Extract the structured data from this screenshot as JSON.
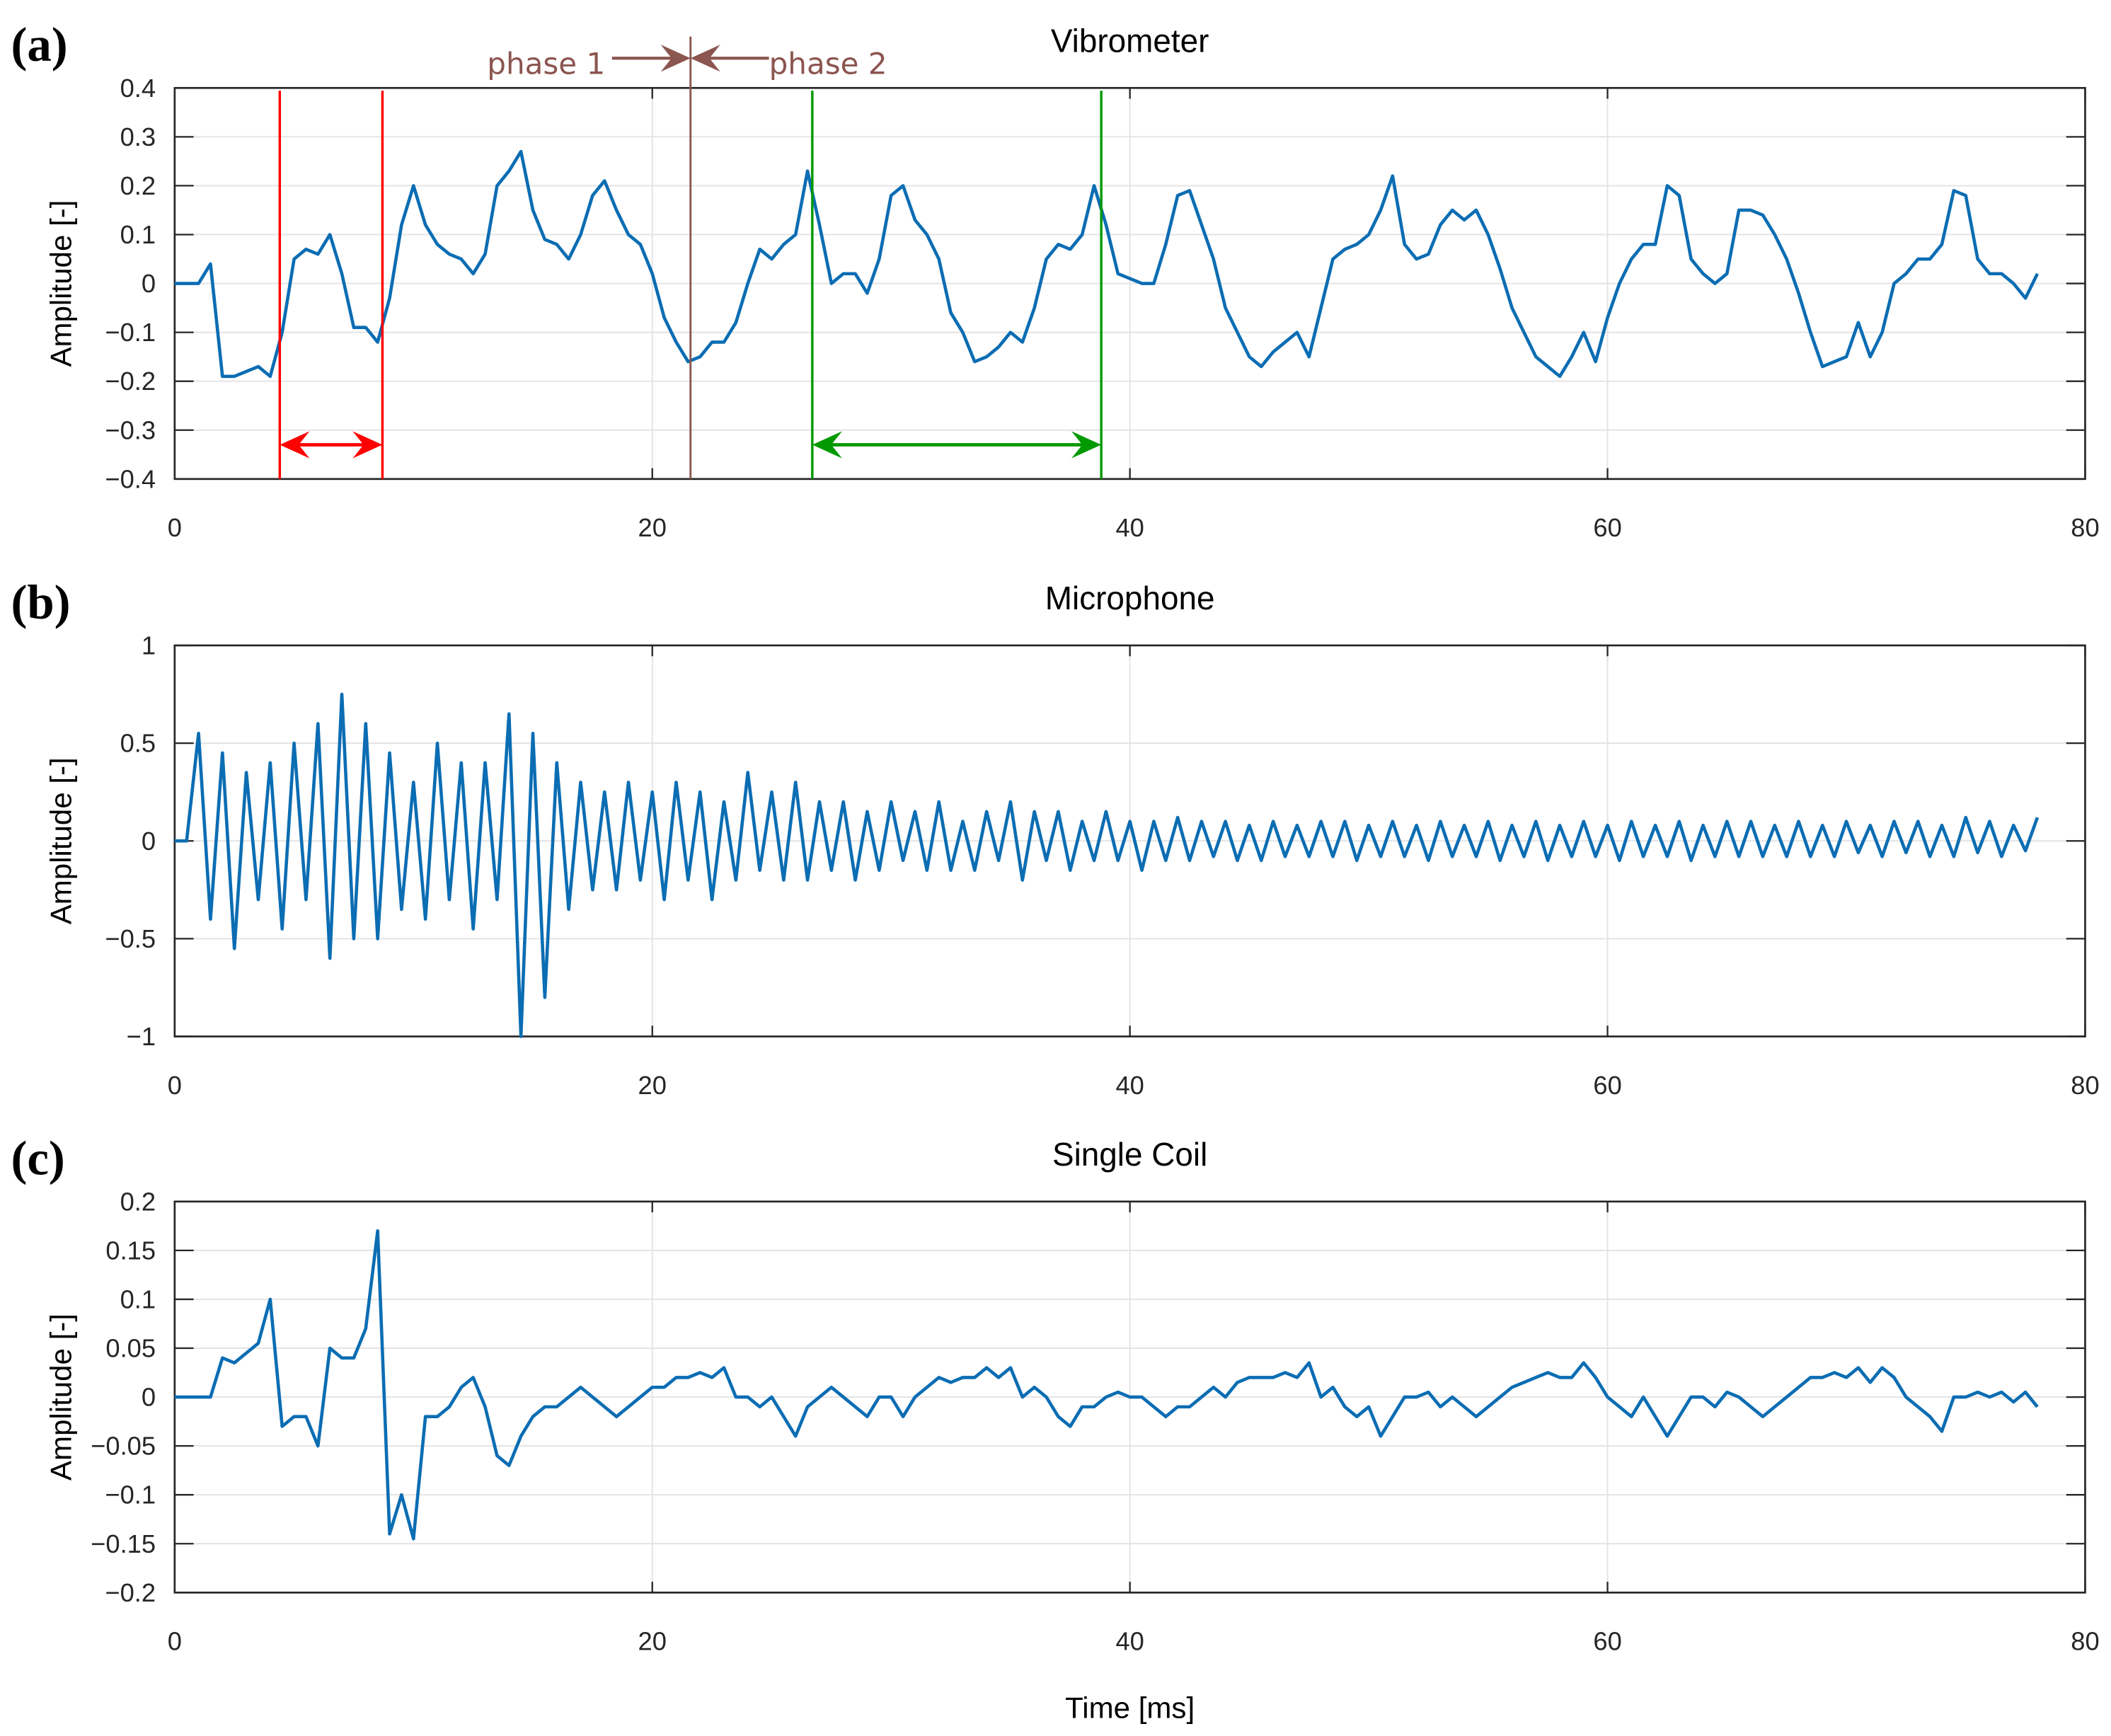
{
  "chart_data": [
    {
      "type": "line",
      "panel_label": "(a)",
      "title": "Vibrometer",
      "y_label": "Amplitude [-]",
      "color": "#0b6db3",
      "grid": true,
      "xlim": [
        0,
        80
      ],
      "xticks": [
        0,
        20,
        40,
        60,
        80
      ],
      "ylim": [
        -0.4,
        0.4
      ],
      "yticks": [
        {
          "value": -0.4,
          "label": "−0.4"
        },
        {
          "value": -0.3,
          "label": "−0.3"
        },
        {
          "value": -0.2,
          "label": "−0.2"
        },
        {
          "value": -0.1,
          "label": "−0.1"
        },
        0,
        0.1,
        0.2,
        0.3,
        0.4
      ],
      "x": [
        0,
        0.5,
        1,
        1.5,
        2,
        2.5,
        3,
        3.5,
        4,
        4.5,
        5,
        5.5,
        6,
        6.5,
        7,
        7.5,
        8,
        8.5,
        9,
        9.5,
        10,
        10.5,
        11,
        11.5,
        12,
        12.5,
        13,
        13.5,
        14,
        14.5,
        15,
        15.5,
        16,
        16.5,
        17,
        17.5,
        18,
        18.5,
        19,
        19.5,
        20,
        20.5,
        21,
        21.5,
        22,
        22.5,
        23,
        23.5,
        24,
        24.5,
        25,
        25.5,
        26,
        26.5,
        27,
        27.5,
        28,
        28.5,
        29,
        29.5,
        30,
        30.5,
        31,
        31.5,
        32,
        32.5,
        33,
        33.5,
        34,
        34.5,
        35,
        35.5,
        36,
        36.5,
        37,
        37.5,
        38,
        38.5,
        39,
        39.5,
        40,
        40.5,
        41,
        41.5,
        42,
        42.5,
        43,
        43.5,
        44,
        44.5,
        45,
        45.5,
        46,
        46.5,
        47,
        47.5,
        48,
        48.5,
        49,
        49.5,
        50,
        50.5,
        51,
        51.5,
        52,
        52.5,
        53,
        53.5,
        54,
        54.5,
        55,
        55.5,
        56,
        56.5,
        57,
        57.5,
        58,
        58.5,
        59,
        59.5,
        60,
        60.5,
        61,
        61.5,
        62,
        62.5,
        63,
        63.5,
        64,
        64.5,
        65,
        65.5,
        66,
        66.5,
        67,
        67.5,
        68,
        68.5,
        69,
        69.5,
        70,
        70.5,
        71,
        71.5,
        72,
        72.5,
        73,
        73.5,
        74,
        74.5,
        75,
        75.5,
        76,
        76.5,
        77,
        77.5,
        78
      ],
      "values": [
        0,
        0,
        0,
        0.04,
        -0.19,
        -0.19,
        -0.18,
        -0.17,
        -0.19,
        -0.1,
        0.05,
        0.07,
        0.06,
        0.1,
        0.02,
        -0.09,
        -0.09,
        -0.12,
        -0.03,
        0.12,
        0.2,
        0.12,
        0.08,
        0.06,
        0.05,
        0.02,
        0.06,
        0.2,
        0.23,
        0.27,
        0.15,
        0.09,
        0.08,
        0.05,
        0.1,
        0.18,
        0.21,
        0.15,
        0.1,
        0.08,
        0.02,
        -0.07,
        -0.12,
        -0.16,
        -0.15,
        -0.12,
        -0.12,
        -0.08,
        0,
        0.07,
        0.05,
        0.08,
        0.1,
        0.23,
        0.12,
        0,
        0.02,
        0.02,
        -0.02,
        0.05,
        0.18,
        0.2,
        0.13,
        0.1,
        0.05,
        -0.06,
        -0.1,
        -0.16,
        -0.15,
        -0.13,
        -0.1,
        -0.12,
        -0.05,
        0.05,
        0.08,
        0.07,
        0.1,
        0.2,
        0.12,
        0.02,
        0.01,
        0,
        0,
        0.08,
        0.18,
        0.19,
        0.12,
        0.05,
        -0.05,
        -0.1,
        -0.15,
        -0.17,
        -0.14,
        -0.12,
        -0.1,
        -0.15,
        -0.05,
        0.05,
        0.07,
        0.08,
        0.1,
        0.15,
        0.22,
        0.08,
        0.05,
        0.06,
        0.12,
        0.15,
        0.13,
        0.15,
        0.1,
        0.03,
        -0.05,
        -0.1,
        -0.15,
        -0.17,
        -0.19,
        -0.15,
        -0.1,
        -0.16,
        -0.07,
        0,
        0.05,
        0.08,
        0.08,
        0.2,
        0.18,
        0.05,
        0.02,
        0,
        0.02,
        0.15,
        0.15,
        0.14,
        0.1,
        0.05,
        -0.02,
        -0.1,
        -0.17,
        -0.16,
        -0.15,
        -0.08,
        -0.15,
        -0.1,
        0,
        0.02,
        0.05,
        0.05,
        0.08,
        0.19,
        0.18,
        0.05,
        0.02,
        0.02,
        0,
        -0.03,
        0.02
      ],
      "vlines": [
        {
          "x": 4.4,
          "color": "#ff0000"
        },
        {
          "x": 8.7,
          "color": "#ff0000"
        },
        {
          "x": 26.7,
          "color": "#009900"
        },
        {
          "x": 38.8,
          "color": "#009900"
        }
      ],
      "spans": [
        {
          "x": [
            4.4,
            8.7
          ],
          "y": -0.33,
          "color": "#ff0000"
        },
        {
          "x": [
            26.7,
            38.8
          ],
          "y": -0.33,
          "color": "#009900"
        }
      ],
      "phase_line": {
        "x": 21.6,
        "color": "#8b5550"
      },
      "phase_labels": [
        "phase 1",
        "phase 2"
      ]
    },
    {
      "type": "line",
      "panel_label": "(b)",
      "title": "Microphone",
      "y_label": "Amplitude [-]",
      "color": "#0b6db3",
      "grid": true,
      "xlim": [
        0,
        80
      ],
      "xticks": [
        0,
        20,
        40,
        60,
        80
      ],
      "ylim": [
        -1,
        1
      ],
      "yticks": [
        {
          "value": -1,
          "label": "−1"
        },
        {
          "value": -0.5,
          "label": "−0.5"
        },
        0,
        0.5,
        1
      ],
      "x": [
        0,
        0.5,
        1,
        1.5,
        2,
        2.5,
        3,
        3.5,
        4,
        4.5,
        5,
        5.5,
        6,
        6.5,
        7,
        7.5,
        8,
        8.5,
        9,
        9.5,
        10,
        10.5,
        11,
        11.5,
        12,
        12.5,
        13,
        13.5,
        14,
        14.5,
        15,
        15.5,
        16,
        16.5,
        17,
        17.5,
        18,
        18.5,
        19,
        19.5,
        20,
        20.5,
        21,
        21.5,
        22,
        22.5,
        23,
        23.5,
        24,
        24.5,
        25,
        25.5,
        26,
        26.5,
        27,
        27.5,
        28,
        28.5,
        29,
        29.5,
        30,
        30.5,
        31,
        31.5,
        32,
        32.5,
        33,
        33.5,
        34,
        34.5,
        35,
        35.5,
        36,
        36.5,
        37,
        37.5,
        38,
        38.5,
        39,
        39.5,
        40,
        40.5,
        41,
        41.5,
        42,
        42.5,
        43,
        43.5,
        44,
        44.5,
        45,
        45.5,
        46,
        46.5,
        47,
        47.5,
        48,
        48.5,
        49,
        49.5,
        50,
        50.5,
        51,
        51.5,
        52,
        52.5,
        53,
        53.5,
        54,
        54.5,
        55,
        55.5,
        56,
        56.5,
        57,
        57.5,
        58,
        58.5,
        59,
        59.5,
        60,
        60.5,
        61,
        61.5,
        62,
        62.5,
        63,
        63.5,
        64,
        64.5,
        65,
        65.5,
        66,
        66.5,
        67,
        67.5,
        68,
        68.5,
        69,
        69.5,
        70,
        70.5,
        71,
        71.5,
        72,
        72.5,
        73,
        73.5,
        74,
        74.5,
        75,
        75.5,
        76,
        76.5,
        77,
        77.5,
        78
      ],
      "values": [
        0,
        0,
        0.55,
        -0.4,
        0.45,
        -0.55,
        0.35,
        -0.3,
        0.4,
        -0.45,
        0.5,
        -0.3,
        0.6,
        -0.6,
        0.75,
        -0.5,
        0.6,
        -0.5,
        0.45,
        -0.35,
        0.3,
        -0.4,
        0.5,
        -0.3,
        0.4,
        -0.45,
        0.4,
        -0.3,
        0.65,
        -1.0,
        0.55,
        -0.8,
        0.4,
        -0.35,
        0.3,
        -0.25,
        0.25,
        -0.25,
        0.3,
        -0.2,
        0.25,
        -0.3,
        0.3,
        -0.2,
        0.25,
        -0.3,
        0.2,
        -0.2,
        0.35,
        -0.15,
        0.25,
        -0.2,
        0.3,
        -0.2,
        0.2,
        -0.15,
        0.2,
        -0.2,
        0.15,
        -0.15,
        0.2,
        -0.1,
        0.15,
        -0.15,
        0.2,
        -0.15,
        0.1,
        -0.15,
        0.15,
        -0.1,
        0.2,
        -0.2,
        0.15,
        -0.1,
        0.15,
        -0.15,
        0.1,
        -0.1,
        0.15,
        -0.1,
        0.1,
        -0.15,
        0.1,
        -0.1,
        0.12,
        -0.1,
        0.1,
        -0.08,
        0.1,
        -0.1,
        0.08,
        -0.1,
        0.1,
        -0.08,
        0.08,
        -0.08,
        0.1,
        -0.08,
        0.1,
        -0.1,
        0.08,
        -0.08,
        0.1,
        -0.08,
        0.08,
        -0.1,
        0.1,
        -0.08,
        0.08,
        -0.08,
        0.1,
        -0.1,
        0.08,
        -0.08,
        0.1,
        -0.1,
        0.08,
        -0.08,
        0.1,
        -0.08,
        0.08,
        -0.1,
        0.1,
        -0.08,
        0.08,
        -0.08,
        0.1,
        -0.1,
        0.08,
        -0.08,
        0.1,
        -0.08,
        0.1,
        -0.08,
        0.08,
        -0.08,
        0.1,
        -0.08,
        0.08,
        -0.08,
        0.1,
        -0.06,
        0.08,
        -0.08,
        0.1,
        -0.06,
        0.1,
        -0.08,
        0.08,
        -0.08,
        0.12,
        -0.06,
        0.1,
        -0.08,
        0.08,
        -0.05,
        0.12
      ]
    },
    {
      "type": "line",
      "panel_label": "(c)",
      "title": "Single Coil",
      "y_label": "Amplitude [-]",
      "x_label": "Time [ms]",
      "color": "#0b6db3",
      "grid": true,
      "xlim": [
        0,
        80
      ],
      "xticks": [
        0,
        20,
        40,
        60,
        80
      ],
      "ylim": [
        -0.2,
        0.2
      ],
      "yticks": [
        {
          "value": -0.2,
          "label": "−0.2"
        },
        {
          "value": -0.15,
          "label": "−0.15"
        },
        {
          "value": -0.1,
          "label": "−0.1"
        },
        {
          "value": -0.05,
          "label": "−0.05"
        },
        0,
        0.05,
        0.1,
        0.15,
        0.2
      ],
      "x": [
        0,
        0.5,
        1,
        1.5,
        2,
        2.5,
        3,
        3.5,
        4,
        4.5,
        5,
        5.5,
        6,
        6.5,
        7,
        7.5,
        8,
        8.5,
        9,
        9.5,
        10,
        10.5,
        11,
        11.5,
        12,
        12.5,
        13,
        13.5,
        14,
        14.5,
        15,
        15.5,
        16,
        16.5,
        17,
        17.5,
        18,
        18.5,
        19,
        19.5,
        20,
        20.5,
        21,
        21.5,
        22,
        22.5,
        23,
        23.5,
        24,
        24.5,
        25,
        25.5,
        26,
        26.5,
        27,
        27.5,
        28,
        28.5,
        29,
        29.5,
        30,
        30.5,
        31,
        31.5,
        32,
        32.5,
        33,
        33.5,
        34,
        34.5,
        35,
        35.5,
        36,
        36.5,
        37,
        37.5,
        38,
        38.5,
        39,
        39.5,
        40,
        40.5,
        41,
        41.5,
        42,
        42.5,
        43,
        43.5,
        44,
        44.5,
        45,
        45.5,
        46,
        46.5,
        47,
        47.5,
        48,
        48.5,
        49,
        49.5,
        50,
        50.5,
        51,
        51.5,
        52,
        52.5,
        53,
        53.5,
        54,
        54.5,
        55,
        55.5,
        56,
        56.5,
        57,
        57.5,
        58,
        58.5,
        59,
        59.5,
        60,
        60.5,
        61,
        61.5,
        62,
        62.5,
        63,
        63.5,
        64,
        64.5,
        65,
        65.5,
        66,
        66.5,
        67,
        67.5,
        68,
        68.5,
        69,
        69.5,
        70,
        70.5,
        71,
        71.5,
        72,
        72.5,
        73,
        73.5,
        74,
        74.5,
        75,
        75.5,
        76,
        76.5,
        77,
        77.5,
        78
      ],
      "values": [
        0,
        0,
        0,
        0,
        0.04,
        0.035,
        0.045,
        0.055,
        0.1,
        -0.03,
        -0.02,
        -0.02,
        -0.05,
        0.05,
        0.04,
        0.04,
        0.07,
        0.17,
        -0.14,
        -0.1,
        -0.145,
        -0.02,
        -0.02,
        -0.01,
        0.01,
        0.02,
        -0.01,
        -0.06,
        -0.07,
        -0.04,
        -0.02,
        -0.01,
        -0.01,
        0,
        0.01,
        0,
        -0.01,
        -0.02,
        -0.01,
        0,
        0.01,
        0.01,
        0.02,
        0.02,
        0.025,
        0.02,
        0.03,
        0,
        0,
        -0.01,
        0,
        -0.02,
        -0.04,
        -0.01,
        0,
        0.01,
        0,
        -0.01,
        -0.02,
        0,
        0,
        -0.02,
        0,
        0.01,
        0.02,
        0.015,
        0.02,
        0.02,
        0.03,
        0.02,
        0.03,
        0,
        0.01,
        0,
        -0.02,
        -0.03,
        -0.01,
        -0.01,
        0,
        0.005,
        0,
        0,
        -0.01,
        -0.02,
        -0.01,
        -0.01,
        0,
        0.01,
        0,
        0.015,
        0.02,
        0.02,
        0.02,
        0.025,
        0.02,
        0.035,
        0,
        0.01,
        -0.01,
        -0.02,
        -0.01,
        -0.04,
        -0.02,
        0,
        0,
        0.005,
        -0.01,
        0,
        -0.01,
        -0.02,
        -0.01,
        0,
        0.01,
        0.015,
        0.02,
        0.025,
        0.02,
        0.02,
        0.035,
        0.02,
        0,
        -0.01,
        -0.02,
        0,
        -0.02,
        -0.04,
        -0.02,
        0,
        0,
        -0.01,
        0.005,
        0,
        -0.01,
        -0.02,
        -0.01,
        0,
        0.01,
        0.02,
        0.02,
        0.025,
        0.02,
        0.03,
        0.015,
        0.03,
        0.02,
        0,
        -0.01,
        -0.02,
        -0.035,
        0,
        0,
        0.005,
        0,
        0.005,
        -0.005,
        0.005,
        -0.01
      ]
    }
  ]
}
